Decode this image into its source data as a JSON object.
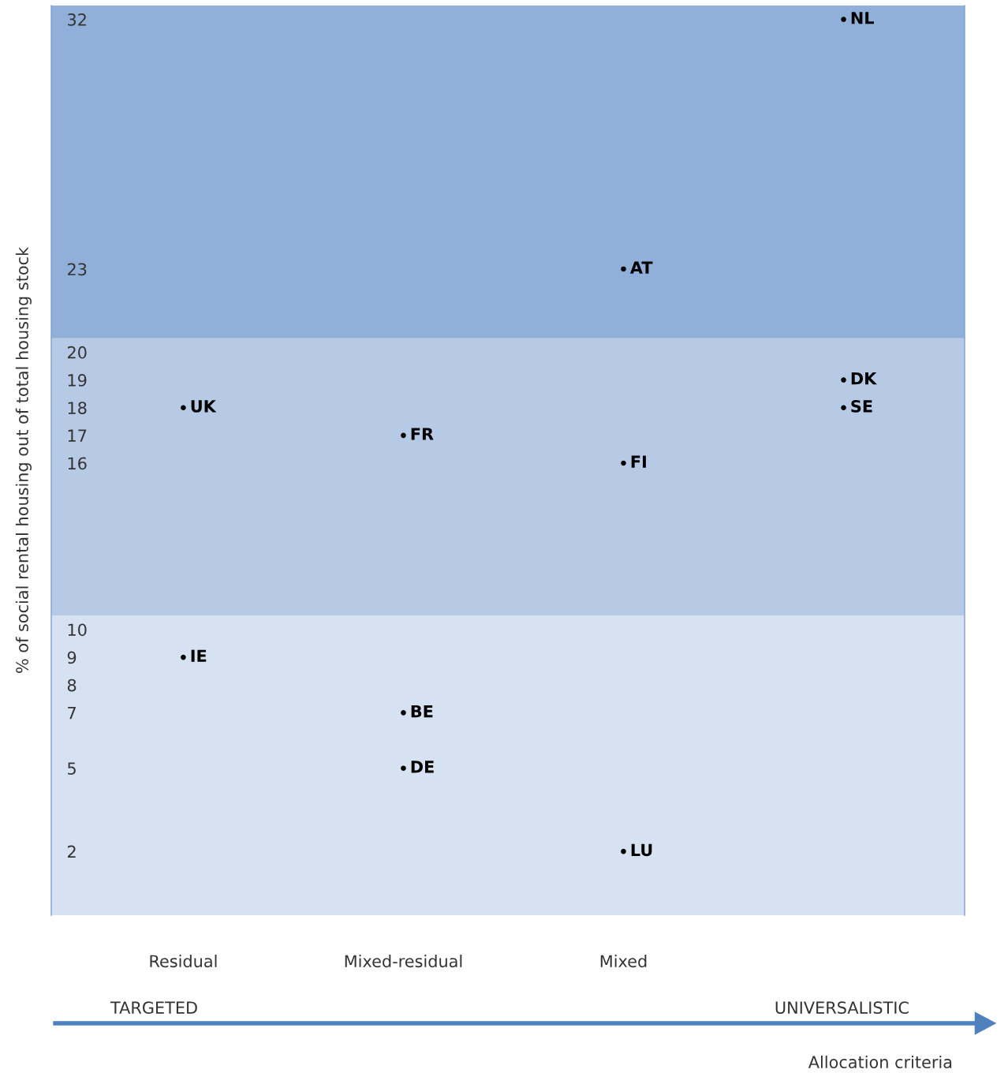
{
  "chart_data": {
    "type": "scatter",
    "ylabel": "% of social rental housing out of total housing stock",
    "categories": [
      "Residual",
      "Mixed-residual",
      "Mixed",
      null
    ],
    "series": [
      {
        "color": "#000000",
        "values": [
          18,
          17,
          23,
          32
        ],
        "value_labels": [
          "UK",
          "FR",
          "AT",
          "NL"
        ]
      },
      {
        "color": "#000000",
        "values": [
          9,
          7,
          16,
          19
        ],
        "value_labels": [
          "IE",
          "BE",
          "FI",
          "DK"
        ]
      },
      {
        "color": "#000000",
        "values": [
          null,
          5,
          2,
          18
        ],
        "value_labels": [
          null,
          "DE",
          "LU",
          "SE"
        ]
      }
    ],
    "marker": "circle",
    "ylim": [
      -0.3,
      32.5
    ],
    "yticks": [
      2,
      5,
      7,
      8,
      9,
      10,
      16,
      17,
      18,
      19,
      20,
      23,
      32
    ],
    "bands": [
      {
        "axis": "y",
        "from": -0.3,
        "to": 10.5,
        "color": "#d6e2f1"
      },
      {
        "axis": "y",
        "from": 10.5,
        "to": 20.5,
        "color": "#b6cae6"
      },
      {
        "axis": "y",
        "from": 20.5,
        "to": 32.5,
        "color": "#90b0d9"
      }
    ],
    "annotations": [
      "TARGETED",
      "UNIVERSALISTIC",
      "Allocation criteria"
    ],
    "grid": false,
    "legend": false
  }
}
